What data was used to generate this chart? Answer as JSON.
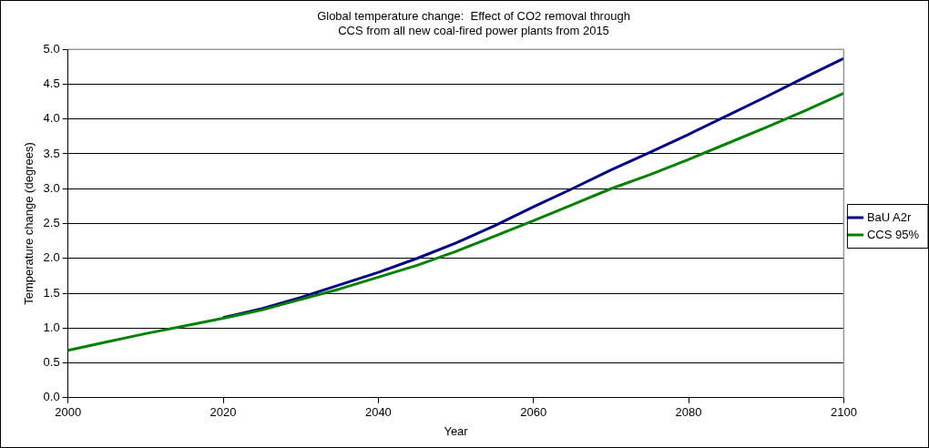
{
  "chart_data": {
    "type": "line",
    "title": "Global temperature change:  Effect of CO2 removal through\nCCS from all new coal-fired power plants from 2015",
    "xlabel": "Year",
    "ylabel": "Temperature change (degrees)",
    "x": [
      2000,
      2005,
      2010,
      2015,
      2020,
      2025,
      2030,
      2035,
      2040,
      2045,
      2050,
      2055,
      2060,
      2065,
      2070,
      2075,
      2080,
      2085,
      2090,
      2095,
      2100
    ],
    "series": [
      {
        "name": "BaU A2r",
        "color": "#000080",
        "values": [
          null,
          null,
          null,
          null,
          1.15,
          1.28,
          1.44,
          1.62,
          1.8,
          2.0,
          2.22,
          2.47,
          2.74,
          3.0,
          3.27,
          3.52,
          3.78,
          4.05,
          4.32,
          4.6,
          4.87
        ]
      },
      {
        "name": "CCS 95%",
        "color": "#008000",
        "values": [
          0.68,
          0.8,
          0.92,
          1.03,
          1.14,
          1.26,
          1.41,
          1.56,
          1.73,
          1.9,
          2.1,
          2.32,
          2.54,
          2.77,
          3.0,
          3.2,
          3.42,
          3.65,
          3.88,
          4.12,
          4.37
        ]
      }
    ],
    "xlim": [
      2000,
      2100
    ],
    "xticks": [
      2000,
      2020,
      2040,
      2060,
      2080,
      2100
    ],
    "ylim": [
      0,
      5
    ],
    "yticks": [
      {
        "value": 0,
        "label": "0.0"
      },
      0.5,
      {
        "value": 1,
        "label": "1.0"
      },
      1.5,
      {
        "value": 2,
        "label": "2.0"
      },
      2.5,
      {
        "value": 3,
        "label": "3.0"
      },
      3.5,
      {
        "value": 4,
        "label": "4.0"
      },
      4.5,
      {
        "value": 5,
        "label": "5.0"
      }
    ],
    "grid": "y",
    "legend": "right",
    "marker": "none",
    "line_style": "solid"
  }
}
